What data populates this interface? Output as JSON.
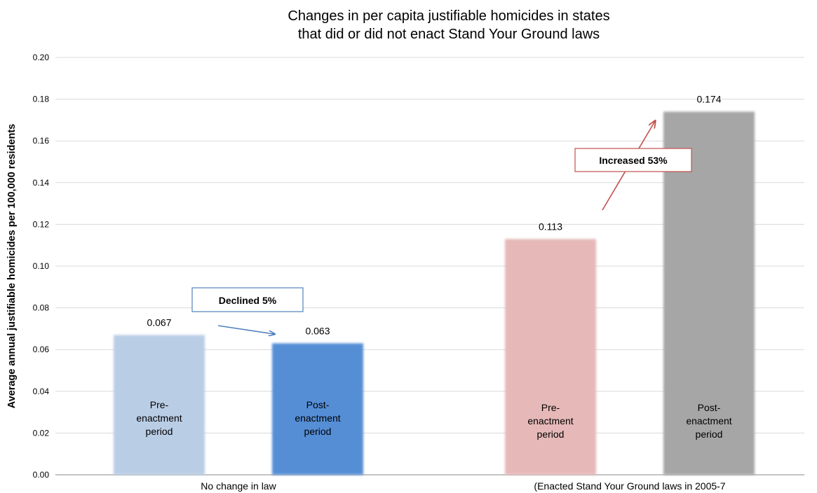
{
  "chart_data": {
    "type": "bar",
    "title_line1": "Changes in per capita justifiable homicides in states",
    "title_line2": "that did or did not enact Stand Your Ground laws",
    "ylabel": "Average annual justifiable homicides per 100,000 residents",
    "ylim": [
      0,
      0.2
    ],
    "y_ticks": [
      "0.00",
      "0.02",
      "0.04",
      "0.06",
      "0.08",
      "0.10",
      "0.12",
      "0.14",
      "0.16",
      "0.18",
      "0.20"
    ],
    "grid": true,
    "categories": [
      "No change in law",
      "(Enacted Stand Your Ground laws in 2005-7"
    ],
    "bar_inner_label": [
      "Pre-",
      "enactment",
      "period"
    ],
    "bar_inner_label_post": [
      "Post-",
      "enactment",
      "period"
    ],
    "bars": [
      {
        "group": 0,
        "period": "pre",
        "value": 0.067,
        "label": "0.067",
        "color": "#b9cde5"
      },
      {
        "group": 0,
        "period": "post",
        "value": 0.063,
        "label": "0.063",
        "color": "#558ed5"
      },
      {
        "group": 1,
        "period": "pre",
        "value": 0.113,
        "label": "0.113",
        "color": "#e6b9b8"
      },
      {
        "group": 1,
        "period": "post",
        "value": 0.174,
        "label": "0.174",
        "color": "#a6a6a6"
      }
    ],
    "annotations": [
      {
        "text": "Declined 5%",
        "group": 0,
        "border": "#4f81bd",
        "arrow": "#4f81bd"
      },
      {
        "text": "Increased 53%",
        "group": 1,
        "border": "#c0504d",
        "arrow": "#c0504d"
      }
    ]
  }
}
